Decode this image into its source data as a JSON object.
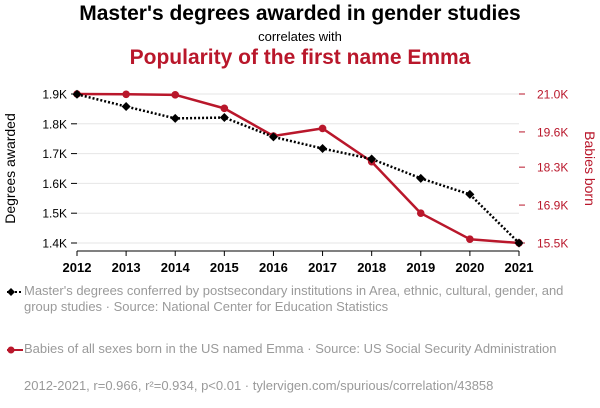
{
  "chart_data": {
    "type": "line",
    "title": "Master's degrees awarded in gender studies",
    "subtitle": "correlates with",
    "title2": "Popularity of the first name Emma",
    "x": [
      2012,
      2013,
      2014,
      2015,
      2016,
      2017,
      2018,
      2019,
      2020,
      2021
    ],
    "ylabel_left": "Degrees awarded",
    "ylabel_right": "Babies born",
    "yticks_left": [
      "1.4K",
      "1.5K",
      "1.6K",
      "1.7K",
      "1.8K",
      "1.9K"
    ],
    "yticks_right": [
      "15.5K",
      "16.9K",
      "18.3K",
      "19.6K",
      "21.0K"
    ],
    "ylim_left": [
      1400,
      1900
    ],
    "ylim_right": [
      15500,
      21000
    ],
    "series": [
      {
        "name": "Master's degrees conferred by postsecondary institutions in Area, ethnic, cultural, gender, and group studies · Source: National Center for Education Statistics",
        "axis": "left",
        "color": "#000000",
        "style": "dotted",
        "marker": "diamond",
        "values": [
          1899,
          1858,
          1818,
          1821,
          1756,
          1717,
          1682,
          1617,
          1563,
          1400
        ]
      },
      {
        "name": "Babies of all sexes born in the US named Emma · Source: US Social Security Administration",
        "axis": "right",
        "color": "#b9172b",
        "style": "solid",
        "marker": "circle",
        "values": [
          21000,
          20990,
          20970,
          20470,
          19450,
          19730,
          18500,
          16600,
          15640,
          15500
        ]
      }
    ],
    "footer": "2012-2021, r=0.966, r²=0.934, p<0.01 · tylervigen.com/spurious/correlation/43858",
    "grid": "horizontal",
    "legend_placement": "bottom"
  }
}
